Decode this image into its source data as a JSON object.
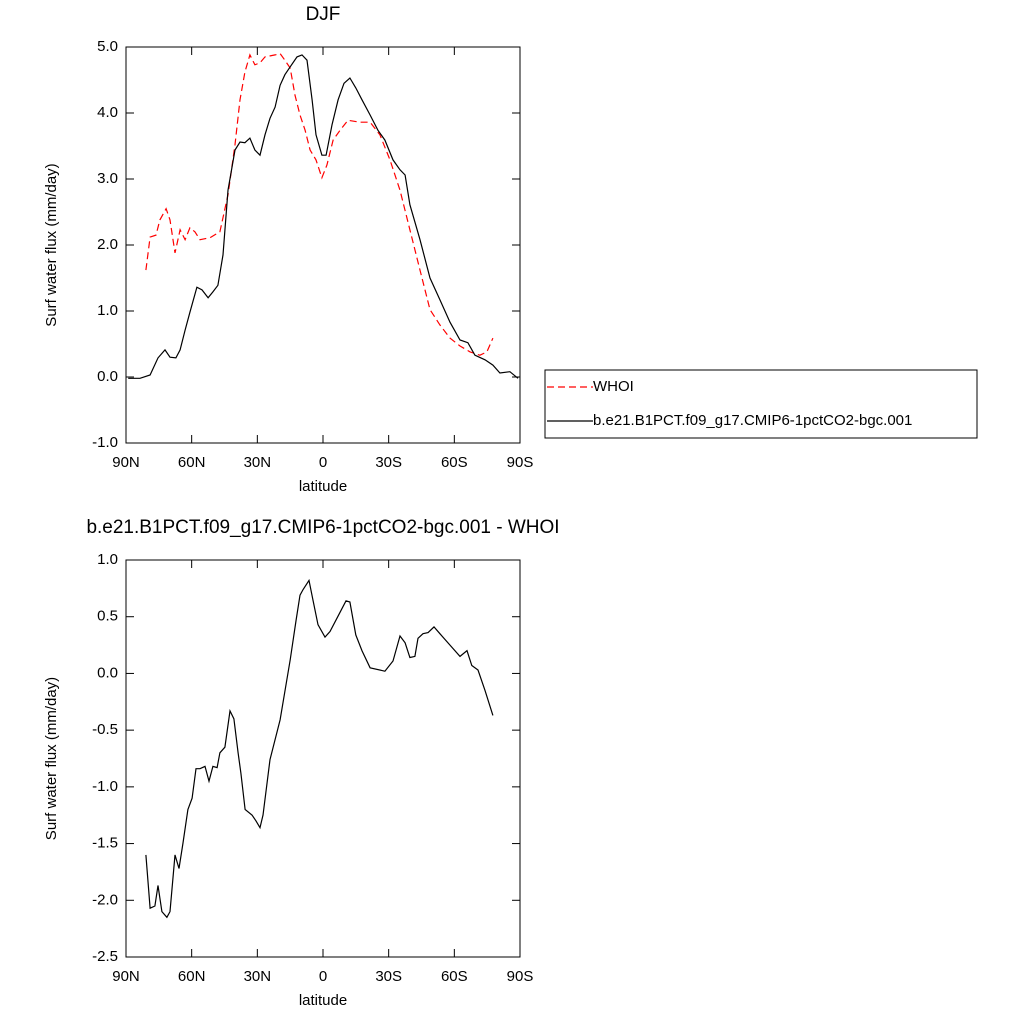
{
  "chart_data": [
    {
      "type": "line",
      "title": "DJF",
      "xlabel": "latitude",
      "ylabel": "Surf water flux (mm/day)",
      "xlim": [
        90,
        -90
      ],
      "xticks": [
        {
          "value": 90,
          "label": "90N"
        },
        {
          "value": 60,
          "label": "60N"
        },
        {
          "value": 30,
          "label": "30N"
        },
        0,
        {
          "value": -30,
          "label": "30S"
        },
        {
          "value": -60,
          "label": "60S"
        },
        {
          "value": -90,
          "label": "90S"
        }
      ],
      "ylim": [
        -1,
        5
      ],
      "yticks": [
        {
          "value": -1,
          "label": "-1.0"
        },
        {
          "value": 0,
          "label": "0.0"
        },
        {
          "value": 1,
          "label": "1.0"
        },
        {
          "value": 2,
          "label": "2.0"
        },
        {
          "value": 3,
          "label": "3.0"
        },
        {
          "value": 4,
          "label": "4.0"
        },
        {
          "value": 5,
          "label": "5.0"
        }
      ],
      "legend": "outside-right",
      "series": [
        {
          "name": "WHOI",
          "color": "#ff0000",
          "dashed": true,
          "x": [
            80.9,
            79,
            76.3,
            74.5,
            71.7,
            69.9,
            67.6,
            65.3,
            63,
            60.8,
            58.5,
            56.2,
            51.6,
            47.1,
            43.4,
            40.2,
            37.9,
            35.7,
            33.4,
            31.1,
            28.8,
            26.5,
            21.9,
            19.6,
            17.4,
            15,
            12.8,
            10.5,
            8.2,
            5.9,
            3.2,
            0.5,
            -1.8,
            -4.6,
            -7.8,
            -11.4,
            -16.9,
            -21.5,
            -26,
            -30.6,
            -35.2,
            -39.7,
            -44.3,
            -48.9,
            -53.4,
            -58,
            -62.6,
            -67.2,
            -71.7,
            -74.9,
            -77.6
          ],
          "values": [
            1.62,
            2.12,
            2.15,
            2.38,
            2.55,
            2.38,
            1.88,
            2.23,
            2.08,
            2.26,
            2.2,
            2.08,
            2.11,
            2.2,
            2.76,
            3.52,
            4.2,
            4.62,
            4.88,
            4.73,
            4.76,
            4.85,
            4.88,
            4.9,
            4.8,
            4.68,
            4.27,
            3.97,
            3.74,
            3.44,
            3.29,
            3.02,
            3.21,
            3.59,
            3.74,
            3.89,
            3.86,
            3.86,
            3.67,
            3.29,
            2.83,
            2.23,
            1.62,
            1.02,
            0.79,
            0.59,
            0.47,
            0.38,
            0.33,
            0.38,
            0.59
          ]
        },
        {
          "name": "b.e21.B1PCT.f09_g17.CMIP6-1pctCO2-bgc.001",
          "color": "#000000",
          "dashed": false,
          "x": [
            89,
            83.6,
            79,
            75.4,
            72.2,
            69.9,
            67.2,
            65.3,
            63,
            60.8,
            57.6,
            55.3,
            52.5,
            50.3,
            48,
            45.7,
            43.4,
            40.2,
            37.9,
            35.7,
            33.4,
            31.1,
            28.8,
            26.5,
            24.2,
            21.9,
            19.6,
            17.4,
            15,
            11.9,
            9.6,
            7.3,
            5,
            3.2,
            0.5,
            -1.4,
            -4.1,
            -6.9,
            -9.6,
            -12.3,
            -15,
            -17.8,
            -21.5,
            -25.1,
            -28.3,
            -32,
            -35.2,
            -37.5,
            -39.7,
            -44.3,
            -48.9,
            -53.4,
            -58,
            -62.6,
            -66.2,
            -69.4,
            -74,
            -77.6,
            -80.8,
            -85.4,
            -89.1
          ],
          "values": [
            -0.02,
            -0.02,
            0.03,
            0.29,
            0.41,
            0.3,
            0.29,
            0.41,
            0.71,
            0.98,
            1.36,
            1.32,
            1.2,
            1.29,
            1.39,
            1.85,
            2.83,
            3.44,
            3.56,
            3.55,
            3.62,
            3.44,
            3.36,
            3.67,
            3.92,
            4.09,
            4.42,
            4.58,
            4.7,
            4.85,
            4.88,
            4.8,
            4.2,
            3.67,
            3.36,
            3.36,
            3.82,
            4.2,
            4.45,
            4.53,
            4.38,
            4.2,
            3.97,
            3.74,
            3.59,
            3.29,
            3.14,
            3.06,
            2.61,
            2.08,
            1.5,
            1.17,
            0.83,
            0.56,
            0.52,
            0.33,
            0.26,
            0.18,
            0.06,
            0.08,
            -0.02
          ]
        }
      ]
    },
    {
      "type": "line",
      "title": "b.e21.B1PCT.f09_g17.CMIP6-1pctCO2-bgc.001 - WHOI",
      "xlabel": "latitude",
      "ylabel": "Surf water flux (mm/day)",
      "xlim": [
        90,
        -90
      ],
      "xticks": [
        {
          "value": 90,
          "label": "90N"
        },
        {
          "value": 60,
          "label": "60N"
        },
        {
          "value": 30,
          "label": "30N"
        },
        0,
        {
          "value": -30,
          "label": "30S"
        },
        {
          "value": -60,
          "label": "60S"
        },
        {
          "value": -90,
          "label": "90S"
        }
      ],
      "ylim": [
        -2.5,
        1
      ],
      "yticks": [
        -2.5,
        {
          "value": -2,
          "label": "-2.0"
        },
        -1.5,
        {
          "value": -1,
          "label": "-1.0"
        },
        -0.5,
        {
          "value": 0,
          "label": "0.0"
        },
        0.5,
        {
          "value": 1,
          "label": "1.0"
        }
      ],
      "series": [
        {
          "color": "#000000",
          "dashed": false,
          "x": [
            80.9,
            79,
            76.8,
            75.4,
            73.6,
            71.3,
            69.9,
            67.6,
            65.8,
            64,
            61.7,
            59.8,
            58,
            56.2,
            53.9,
            52.1,
            50.3,
            48.4,
            47.1,
            44.8,
            42.5,
            40.7,
            38.8,
            37.5,
            35.6,
            32.4,
            30.6,
            28.8,
            27.4,
            24.2,
            19.6,
            15,
            12.3,
            10.5,
            9.1,
            6.4,
            4.6,
            2.3,
            -0.9,
            -3.2,
            -7.8,
            -10.5,
            -12.3,
            -15,
            -17.8,
            -21.5,
            -28.3,
            -32,
            -35.2,
            -37.5,
            -39.7,
            -42,
            -43.4,
            -45.7,
            -48,
            -50.7,
            -53.4,
            -58,
            -62.6,
            -65.8,
            -68,
            -70.8,
            -74,
            -77.6
          ],
          "values": [
            -1.6,
            -2.07,
            -2.05,
            -1.87,
            -2.1,
            -2.15,
            -2.1,
            -1.6,
            -1.72,
            -1.5,
            -1.2,
            -1.1,
            -0.84,
            -0.84,
            -0.82,
            -0.95,
            -0.82,
            -0.83,
            -0.7,
            -0.65,
            -0.33,
            -0.4,
            -0.7,
            -0.88,
            -1.2,
            -1.25,
            -1.3,
            -1.36,
            -1.25,
            -0.76,
            -0.41,
            0.12,
            0.47,
            0.69,
            0.74,
            0.82,
            0.65,
            0.43,
            0.32,
            0.37,
            0.54,
            0.64,
            0.63,
            0.34,
            0.2,
            0.05,
            0.02,
            0.11,
            0.33,
            0.27,
            0.14,
            0.15,
            0.31,
            0.35,
            0.36,
            0.41,
            0.35,
            0.25,
            0.15,
            0.2,
            0.07,
            0.03,
            -0.15,
            -0.37
          ]
        }
      ]
    }
  ]
}
